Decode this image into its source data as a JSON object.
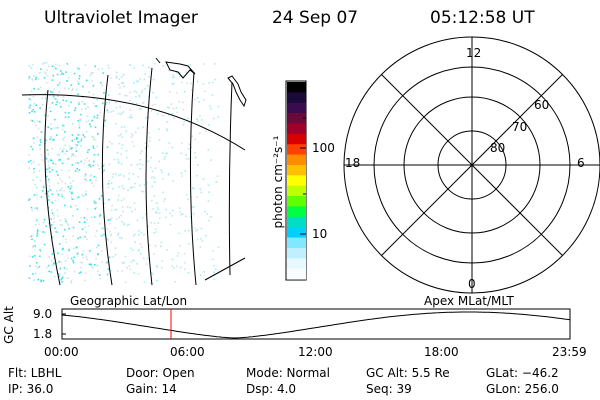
{
  "header": {
    "title": "Ultraviolet Imager",
    "date": "24 Sep 07",
    "time": "05:12:58 UT"
  },
  "colorbar": {
    "unit": "photon cm⁻²s⁻¹",
    "ticks": [
      "100",
      "10"
    ]
  },
  "polar": {
    "mlt_labels": {
      "top": "12",
      "left": "18",
      "right": "6",
      "bottom": "0"
    },
    "lat_labels": [
      "60",
      "70",
      "80"
    ]
  },
  "orbit_panel": {
    "left_label": "Geographic Lat/Lon",
    "right_label": "Apex MLat/MLT",
    "y_title": "GC Alt",
    "y_ticks": [
      "9.0",
      "1.8"
    ],
    "x_ticks": [
      "00:00",
      "06:00",
      "12:00",
      "18:00",
      "23:59"
    ],
    "current_time_marker": "05:12:58",
    "colors": {
      "marker": "#ff0000",
      "line": "#000000"
    }
  },
  "status": {
    "filter": "Flt: LBHL",
    "ip": "IP: 36.0",
    "door": "Door: Open",
    "gain": "Gain: 14",
    "mode": "Mode: Normal",
    "dsp": "Dsp:    4.0",
    "gc_alt": "GC Alt: 5.5 Re",
    "seq": "Seq: 39",
    "glat": "GLat: −46.2",
    "glon": "GLon: 256.0"
  }
}
